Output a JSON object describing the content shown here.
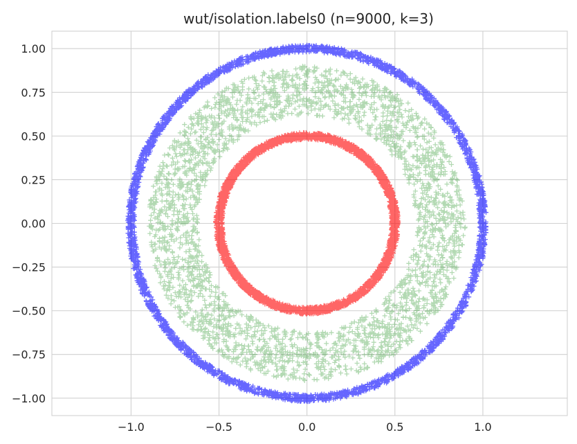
{
  "chart_data": {
    "type": "scatter",
    "title": "wut/isolation.labels0 (n=9000, k=3)",
    "xlabel": "",
    "ylabel": "",
    "xlim": [
      -1.45,
      1.48
    ],
    "ylim": [
      -1.1,
      1.1
    ],
    "x_ticks": [
      -1.0,
      -0.5,
      0.0,
      0.5,
      1.0
    ],
    "x_tick_labels": [
      "−1.0",
      "−0.5",
      "0.0",
      "0.5",
      "1.0"
    ],
    "y_ticks": [
      1.0,
      0.75,
      0.5,
      0.25,
      0.0,
      -0.25,
      -0.5,
      -0.75,
      -1.0
    ],
    "y_tick_labels": [
      "1.00",
      "0.75",
      "0.50",
      "0.25",
      "0.00",
      "−0.25",
      "−0.50",
      "−0.75",
      "−1.00"
    ],
    "grid": true,
    "legend": "none",
    "series": [
      {
        "cluster": 1,
        "shape": "ring",
        "r_min": 0.48,
        "r_max": 0.52,
        "count": 3000,
        "color": "#ff0000",
        "marker": "plus"
      },
      {
        "cluster": 2,
        "shape": "annulus",
        "r_min": 0.62,
        "r_max": 0.9,
        "count": 3000,
        "color": "#008000",
        "marker": "plus",
        "alpha": 0.3
      },
      {
        "cluster": 3,
        "shape": "ring",
        "r_min": 0.98,
        "r_max": 1.02,
        "count": 3000,
        "color": "#0000ff",
        "marker": "plus"
      }
    ]
  }
}
